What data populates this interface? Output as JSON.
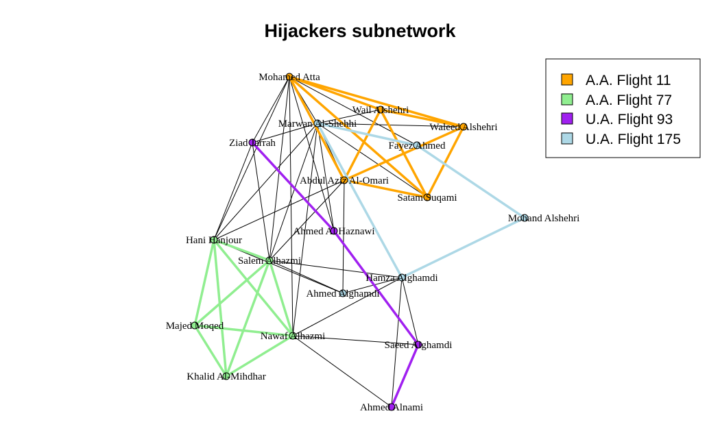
{
  "title": "Hijackers subnetwork",
  "colors": {
    "A.A. Flight 11": "#FFA500",
    "A.A. Flight 77": "#90EE90",
    "U.A. Flight 93": "#A020F0",
    "U.A. Flight 175": "#ADD8E6",
    "tie": "#000000"
  },
  "legend": {
    "entries": [
      {
        "label": "A.A. Flight 11",
        "color": "#FFA500"
      },
      {
        "label": "A.A. Flight 77",
        "color": "#90EE90"
      },
      {
        "label": "U.A. Flight 93",
        "color": "#A020F0"
      },
      {
        "label": "U.A. Flight 175",
        "color": "#ADD8E6"
      }
    ]
  },
  "nodes": [
    {
      "id": "atta",
      "label": "Mohamed Atta",
      "flight": "A.A. Flight 11"
    },
    {
      "id": "wail",
      "label": "Wail Alshehri",
      "flight": "A.A. Flight 11"
    },
    {
      "id": "waleed",
      "label": "Waleed Alshehri",
      "flight": "A.A. Flight 11"
    },
    {
      "id": "omari",
      "label": "Abdul Aziz Al-Omari",
      "flight": "A.A. Flight 11"
    },
    {
      "id": "suqami",
      "label": "Satam Suqami",
      "flight": "A.A. Flight 11"
    },
    {
      "id": "marwan",
      "label": "Marwan Al-Shehhi",
      "flight": "U.A. Flight 175"
    },
    {
      "id": "fayez",
      "label": "Fayez Ahmed",
      "flight": "U.A. Flight 175"
    },
    {
      "id": "mohand",
      "label": "Mohand Alshehri",
      "flight": "U.A. Flight 175"
    },
    {
      "id": "hamza",
      "label": "Hamza Alghamdi",
      "flight": "U.A. Flight 175"
    },
    {
      "id": "ahmedg",
      "label": "Ahmed Alghamdi",
      "flight": "U.A. Flight 175"
    },
    {
      "id": "ziad",
      "label": "Ziad Jarrah",
      "flight": "U.A. Flight 93"
    },
    {
      "id": "haznawi",
      "label": "Ahmed Al Haznawi",
      "flight": "U.A. Flight 93"
    },
    {
      "id": "saeed",
      "label": "Saeed Alghamdi",
      "flight": "U.A. Flight 93"
    },
    {
      "id": "alnami",
      "label": "Ahmed Alnami",
      "flight": "U.A. Flight 93"
    },
    {
      "id": "hani",
      "label": "Hani Hanjour",
      "flight": "A.A. Flight 77"
    },
    {
      "id": "salem",
      "label": "Salem Alhazmi",
      "flight": "A.A. Flight 77"
    },
    {
      "id": "majed",
      "label": "Majed Moqed",
      "flight": "A.A. Flight 77"
    },
    {
      "id": "nawaf",
      "label": "Nawaf Alhazmi",
      "flight": "A.A. Flight 77"
    },
    {
      "id": "khalid",
      "label": "Khalid Al-Mihdhar",
      "flight": "A.A. Flight 77"
    }
  ],
  "flight_ties": [
    {
      "from": "atta",
      "to": "wail",
      "flight": "A.A. Flight 11"
    },
    {
      "from": "atta",
      "to": "waleed",
      "flight": "A.A. Flight 11"
    },
    {
      "from": "atta",
      "to": "omari",
      "flight": "A.A. Flight 11"
    },
    {
      "from": "atta",
      "to": "suqami",
      "flight": "A.A. Flight 11"
    },
    {
      "from": "wail",
      "to": "waleed",
      "flight": "A.A. Flight 11"
    },
    {
      "from": "wail",
      "to": "omari",
      "flight": "A.A. Flight 11"
    },
    {
      "from": "wail",
      "to": "suqami",
      "flight": "A.A. Flight 11"
    },
    {
      "from": "waleed",
      "to": "omari",
      "flight": "A.A. Flight 11"
    },
    {
      "from": "waleed",
      "to": "suqami",
      "flight": "A.A. Flight 11"
    },
    {
      "from": "omari",
      "to": "suqami",
      "flight": "A.A. Flight 11"
    },
    {
      "from": "marwan",
      "to": "fayez",
      "flight": "U.A. Flight 175"
    },
    {
      "from": "fayez",
      "to": "mohand",
      "flight": "U.A. Flight 175"
    },
    {
      "from": "mohand",
      "to": "hamza",
      "flight": "U.A. Flight 175"
    },
    {
      "from": "marwan",
      "to": "hamza",
      "flight": "U.A. Flight 175"
    },
    {
      "from": "ziad",
      "to": "haznawi",
      "flight": "U.A. Flight 93"
    },
    {
      "from": "haznawi",
      "to": "saeed",
      "flight": "U.A. Flight 93"
    },
    {
      "from": "saeed",
      "to": "alnami",
      "flight": "U.A. Flight 93"
    },
    {
      "from": "hani",
      "to": "salem",
      "flight": "A.A. Flight 77"
    },
    {
      "from": "hani",
      "to": "majed",
      "flight": "A.A. Flight 77"
    },
    {
      "from": "hani",
      "to": "nawaf",
      "flight": "A.A. Flight 77"
    },
    {
      "from": "hani",
      "to": "khalid",
      "flight": "A.A. Flight 77"
    },
    {
      "from": "salem",
      "to": "majed",
      "flight": "A.A. Flight 77"
    },
    {
      "from": "salem",
      "to": "nawaf",
      "flight": "A.A. Flight 77"
    },
    {
      "from": "salem",
      "to": "khalid",
      "flight": "A.A. Flight 77"
    },
    {
      "from": "majed",
      "to": "nawaf",
      "flight": "A.A. Flight 77"
    },
    {
      "from": "majed",
      "to": "khalid",
      "flight": "A.A. Flight 77"
    },
    {
      "from": "nawaf",
      "to": "khalid",
      "flight": "A.A. Flight 77"
    }
  ],
  "other_ties": [
    [
      "atta",
      "marwan"
    ],
    [
      "atta",
      "ziad"
    ],
    [
      "atta",
      "hani"
    ],
    [
      "atta",
      "nawaf"
    ],
    [
      "atta",
      "fayez"
    ],
    [
      "atta",
      "salem"
    ],
    [
      "atta",
      "haznawi"
    ],
    [
      "marwan",
      "wail"
    ],
    [
      "marwan",
      "waleed"
    ],
    [
      "marwan",
      "suqami"
    ],
    [
      "marwan",
      "ziad"
    ],
    [
      "marwan",
      "hani"
    ],
    [
      "marwan",
      "salem"
    ],
    [
      "marwan",
      "nawaf"
    ],
    [
      "marwan",
      "omari"
    ],
    [
      "marwan",
      "haznawi"
    ],
    [
      "ziad",
      "hani"
    ],
    [
      "ziad",
      "salem"
    ],
    [
      "omari",
      "hani"
    ],
    [
      "omari",
      "salem"
    ],
    [
      "omari",
      "ahmedg"
    ],
    [
      "hani",
      "ahmedg"
    ],
    [
      "salem",
      "ahmedg"
    ],
    [
      "salem",
      "hamza"
    ],
    [
      "nawaf",
      "saeed"
    ],
    [
      "nawaf",
      "alnami"
    ],
    [
      "nawaf",
      "hamza"
    ],
    [
      "hamza",
      "ahmedg"
    ],
    [
      "hamza",
      "saeed"
    ],
    [
      "hamza",
      "alnami"
    ]
  ]
}
